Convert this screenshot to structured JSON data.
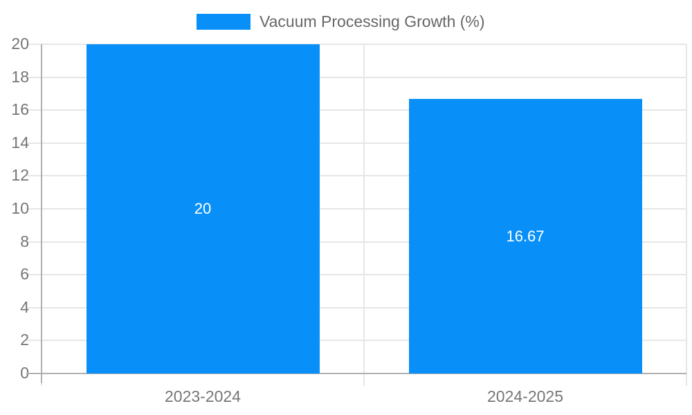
{
  "chart_data": {
    "type": "bar",
    "title": "",
    "legend": {
      "label": "Vacuum Processing Growth (%)",
      "position": "top"
    },
    "categories": [
      "2023-2024",
      "2024-2025"
    ],
    "series": [
      {
        "name": "Vacuum Processing Growth (%)",
        "values": [
          20,
          16.67
        ],
        "value_labels": [
          "20",
          "16.67"
        ]
      }
    ],
    "xlabel": "",
    "ylabel": "",
    "ylim": [
      0,
      20
    ],
    "ytick_step": 2,
    "grid": true,
    "colors": {
      "bar": "#0990f8",
      "gridline": "#e6e6e6",
      "axis_line": "#b0b0b0",
      "axis_text": "#757575",
      "legend_text": "#666666",
      "bar_value_text": "#ffffff"
    }
  }
}
